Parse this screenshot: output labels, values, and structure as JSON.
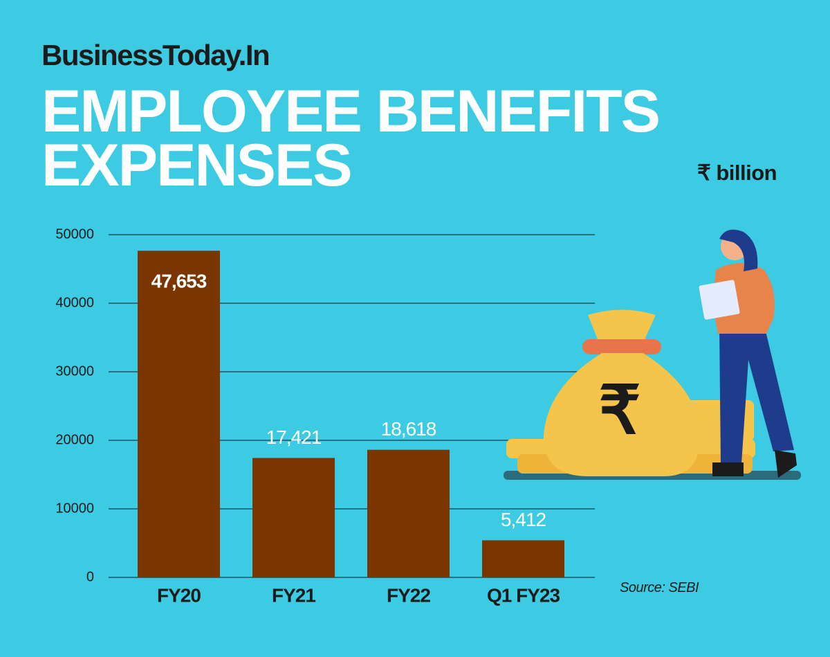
{
  "brand": "BusinessToday.In",
  "chart_data": {
    "type": "bar",
    "title": "EMPLOYEE BENEFITS EXPENSES",
    "unit": "₹ billion",
    "source": "Source: SEBI",
    "categories": [
      "FY20",
      "FY21",
      "FY22",
      "Q1 FY23"
    ],
    "values": [
      47653,
      17421,
      18618,
      5412
    ],
    "value_labels": [
      "47,653",
      "17,421",
      "18,618",
      "5,412"
    ],
    "color": "#7a3500",
    "ylim": [
      0,
      50000
    ],
    "yticks": [
      0,
      10000,
      20000,
      30000,
      40000,
      50000
    ],
    "grid": true
  }
}
